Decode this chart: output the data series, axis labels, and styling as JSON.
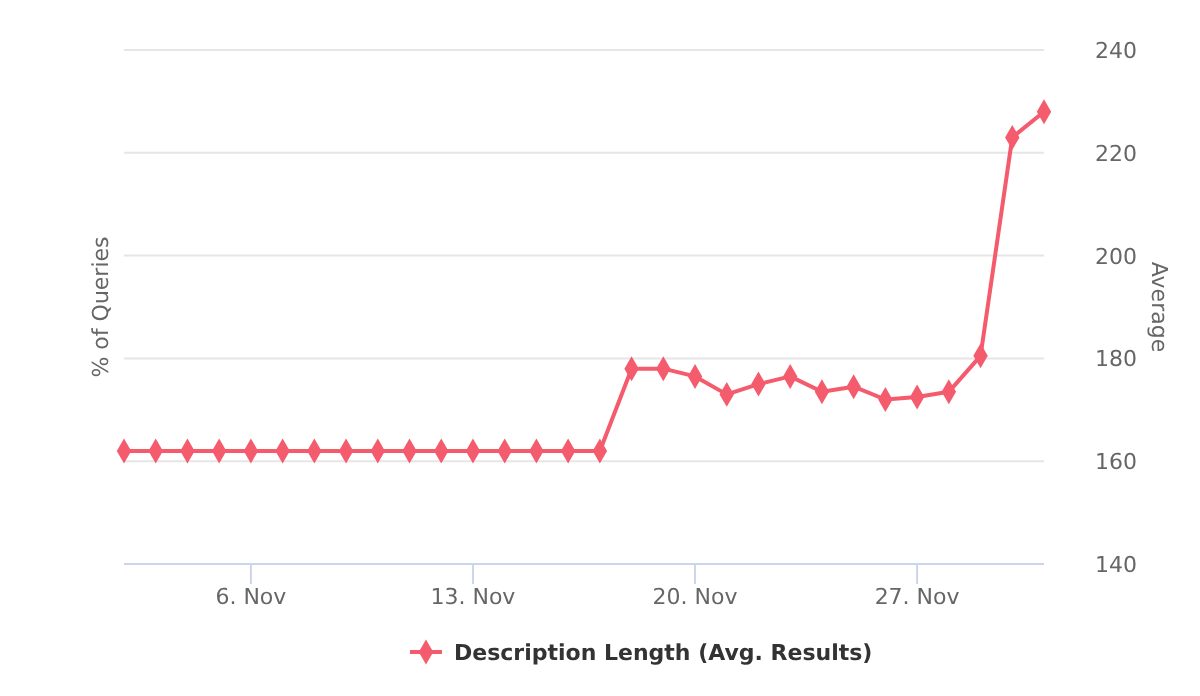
{
  "chart_data": {
    "type": "line",
    "ylabel": "% of Queries",
    "y2label": "Average",
    "x": [
      "--11-02",
      "--11-03",
      "--11-04",
      "--11-05",
      "--11-06",
      "--11-07",
      "--11-08",
      "--11-09",
      "--11-10",
      "--11-11",
      "--11-12",
      "--11-13",
      "--11-14",
      "--11-15",
      "--11-16",
      "--11-17",
      "--11-18",
      "--11-19",
      "--11-20",
      "--11-21",
      "--11-22",
      "--11-23",
      "--11-24",
      "--11-25",
      "--11-26",
      "--11-27",
      "--11-28",
      "--11-29",
      "--11-30",
      "--12-01"
    ],
    "xlim": [
      "--11-02",
      "--12-01"
    ],
    "xticks": [
      {
        "value": "--11-06",
        "label": "6. Nov"
      },
      {
        "value": "--11-13",
        "label": "13. Nov"
      },
      {
        "value": "--11-20",
        "label": "20. Nov"
      },
      {
        "value": "--11-27",
        "label": "27. Nov"
      }
    ],
    "y2lim": [
      140,
      240
    ],
    "y2ticks": [
      140,
      160,
      180,
      200,
      220,
      240
    ],
    "series": [
      {
        "name": "Description Length (Avg. Results)",
        "color": "#f45b6c",
        "axis": "y2",
        "values": [
          162,
          162,
          162,
          162,
          162,
          162,
          162,
          162,
          162,
          162,
          162,
          162,
          162,
          162,
          162,
          162,
          178,
          178,
          176.5,
          173,
          175,
          176.5,
          173.5,
          174.5,
          172,
          172.5,
          173.5,
          180.5,
          223,
          228
        ]
      }
    ],
    "grid": true,
    "legend": "bottom",
    "marker": "diamond",
    "line_style": "solid"
  }
}
